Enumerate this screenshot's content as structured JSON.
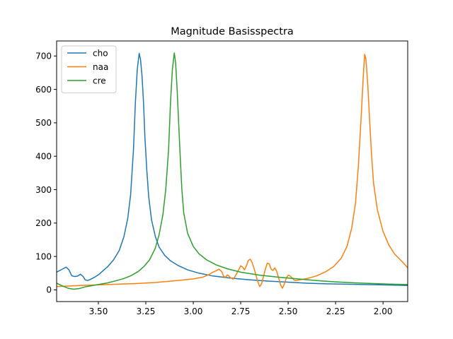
{
  "chart_data": {
    "type": "line",
    "title": "Magnitude Basisspectra",
    "xlabel": "",
    "ylabel": "",
    "x_axis_inverted": true,
    "xlim": [
      3.72,
      1.87
    ],
    "ylim": [
      -35,
      745
    ],
    "x_ticks": [
      3.5,
      3.25,
      3.0,
      2.75,
      2.5,
      2.25,
      2.0
    ],
    "x_tick_labels": [
      "3.50",
      "3.25",
      "3.00",
      "2.75",
      "2.50",
      "2.25",
      "2.00"
    ],
    "y_ticks": [
      0,
      100,
      200,
      300,
      400,
      500,
      600,
      700
    ],
    "y_tick_labels": [
      "0",
      "100",
      "200",
      "300",
      "400",
      "500",
      "600",
      "700"
    ],
    "grid": false,
    "legend_position": "top-left",
    "series": [
      {
        "name": "cho",
        "color": "#1f77b4",
        "points": [
          [
            3.72,
            53
          ],
          [
            3.69,
            62
          ],
          [
            3.67,
            68
          ],
          [
            3.655,
            60
          ],
          [
            3.64,
            42
          ],
          [
            3.625,
            40
          ],
          [
            3.61,
            41
          ],
          [
            3.595,
            47
          ],
          [
            3.58,
            40
          ],
          [
            3.57,
            30
          ],
          [
            3.555,
            28
          ],
          [
            3.54,
            32
          ],
          [
            3.52,
            38
          ],
          [
            3.5,
            45
          ],
          [
            3.48,
            55
          ],
          [
            3.45,
            70
          ],
          [
            3.42,
            90
          ],
          [
            3.39,
            118
          ],
          [
            3.365,
            160
          ],
          [
            3.345,
            215
          ],
          [
            3.33,
            285
          ],
          [
            3.315,
            420
          ],
          [
            3.305,
            560
          ],
          [
            3.295,
            660
          ],
          [
            3.285,
            708
          ],
          [
            3.278,
            690
          ],
          [
            3.27,
            640
          ],
          [
            3.262,
            560
          ],
          [
            3.255,
            460
          ],
          [
            3.245,
            360
          ],
          [
            3.235,
            280
          ],
          [
            3.22,
            210
          ],
          [
            3.2,
            160
          ],
          [
            3.18,
            128
          ],
          [
            3.15,
            103
          ],
          [
            3.12,
            87
          ],
          [
            3.08,
            73
          ],
          [
            3.03,
            60
          ],
          [
            2.97,
            50
          ],
          [
            2.9,
            42
          ],
          [
            2.8,
            35
          ],
          [
            2.7,
            30
          ],
          [
            2.6,
            26
          ],
          [
            2.5,
            23
          ],
          [
            2.4,
            20
          ],
          [
            2.3,
            18
          ],
          [
            2.2,
            17
          ],
          [
            2.1,
            16
          ],
          [
            2.0,
            15
          ],
          [
            1.87,
            13
          ]
        ]
      },
      {
        "name": "naa",
        "color": "#ff7f0e",
        "points": [
          [
            3.72,
            10
          ],
          [
            3.6,
            13
          ],
          [
            3.5,
            15
          ],
          [
            3.4,
            17
          ],
          [
            3.3,
            19
          ],
          [
            3.2,
            22
          ],
          [
            3.1,
            27
          ],
          [
            3.0,
            33
          ],
          [
            2.95,
            38
          ],
          [
            2.92,
            45
          ],
          [
            2.9,
            52
          ],
          [
            2.88,
            57
          ],
          [
            2.865,
            62
          ],
          [
            2.85,
            55
          ],
          [
            2.84,
            40
          ],
          [
            2.83,
            38
          ],
          [
            2.82,
            45
          ],
          [
            2.81,
            40
          ],
          [
            2.8,
            35
          ],
          [
            2.79,
            32
          ],
          [
            2.78,
            40
          ],
          [
            2.765,
            55
          ],
          [
            2.75,
            72
          ],
          [
            2.74,
            68
          ],
          [
            2.73,
            60
          ],
          [
            2.72,
            72
          ],
          [
            2.71,
            88
          ],
          [
            2.7,
            92
          ],
          [
            2.69,
            82
          ],
          [
            2.68,
            65
          ],
          [
            2.67,
            45
          ],
          [
            2.66,
            25
          ],
          [
            2.65,
            10
          ],
          [
            2.64,
            18
          ],
          [
            2.63,
            40
          ],
          [
            2.62,
            62
          ],
          [
            2.61,
            80
          ],
          [
            2.6,
            78
          ],
          [
            2.59,
            62
          ],
          [
            2.58,
            58
          ],
          [
            2.57,
            66
          ],
          [
            2.56,
            55
          ],
          [
            2.55,
            35
          ],
          [
            2.54,
            15
          ],
          [
            2.53,
            5
          ],
          [
            2.52,
            18
          ],
          [
            2.51,
            35
          ],
          [
            2.5,
            44
          ],
          [
            2.49,
            42
          ],
          [
            2.48,
            36
          ],
          [
            2.47,
            30
          ],
          [
            2.46,
            28
          ],
          [
            2.44,
            30
          ],
          [
            2.4,
            34
          ],
          [
            2.35,
            42
          ],
          [
            2.3,
            55
          ],
          [
            2.26,
            70
          ],
          [
            2.22,
            95
          ],
          [
            2.19,
            130
          ],
          [
            2.165,
            185
          ],
          [
            2.145,
            260
          ],
          [
            2.13,
            370
          ],
          [
            2.115,
            520
          ],
          [
            2.105,
            630
          ],
          [
            2.097,
            705
          ],
          [
            2.09,
            690
          ],
          [
            2.08,
            610
          ],
          [
            2.07,
            500
          ],
          [
            2.06,
            400
          ],
          [
            2.05,
            320
          ],
          [
            2.03,
            240
          ],
          [
            2.0,
            175
          ],
          [
            1.97,
            135
          ],
          [
            1.94,
            108
          ],
          [
            1.9,
            85
          ],
          [
            1.87,
            66
          ]
        ]
      },
      {
        "name": "cre",
        "color": "#2ca02c",
        "points": [
          [
            3.72,
            20
          ],
          [
            3.69,
            12
          ],
          [
            3.66,
            5
          ],
          [
            3.63,
            2
          ],
          [
            3.6,
            4
          ],
          [
            3.57,
            9
          ],
          [
            3.53,
            13
          ],
          [
            3.49,
            17
          ],
          [
            3.45,
            21
          ],
          [
            3.41,
            27
          ],
          [
            3.37,
            33
          ],
          [
            3.33,
            42
          ],
          [
            3.29,
            55
          ],
          [
            3.26,
            70
          ],
          [
            3.23,
            90
          ],
          [
            3.2,
            125
          ],
          [
            3.18,
            165
          ],
          [
            3.16,
            225
          ],
          [
            3.145,
            300
          ],
          [
            3.13,
            420
          ],
          [
            3.12,
            560
          ],
          [
            3.11,
            660
          ],
          [
            3.1,
            709
          ],
          [
            3.093,
            680
          ],
          [
            3.085,
            600
          ],
          [
            3.077,
            500
          ],
          [
            3.068,
            390
          ],
          [
            3.06,
            300
          ],
          [
            3.05,
            230
          ],
          [
            3.03,
            170
          ],
          [
            3.0,
            130
          ],
          [
            2.97,
            108
          ],
          [
            2.93,
            90
          ],
          [
            2.88,
            75
          ],
          [
            2.82,
            63
          ],
          [
            2.75,
            53
          ],
          [
            2.65,
            44
          ],
          [
            2.55,
            38
          ],
          [
            2.45,
            33
          ],
          [
            2.35,
            28
          ],
          [
            2.25,
            24
          ],
          [
            2.15,
            21
          ],
          [
            2.05,
            19
          ],
          [
            1.95,
            17
          ],
          [
            1.87,
            16
          ]
        ]
      }
    ]
  }
}
